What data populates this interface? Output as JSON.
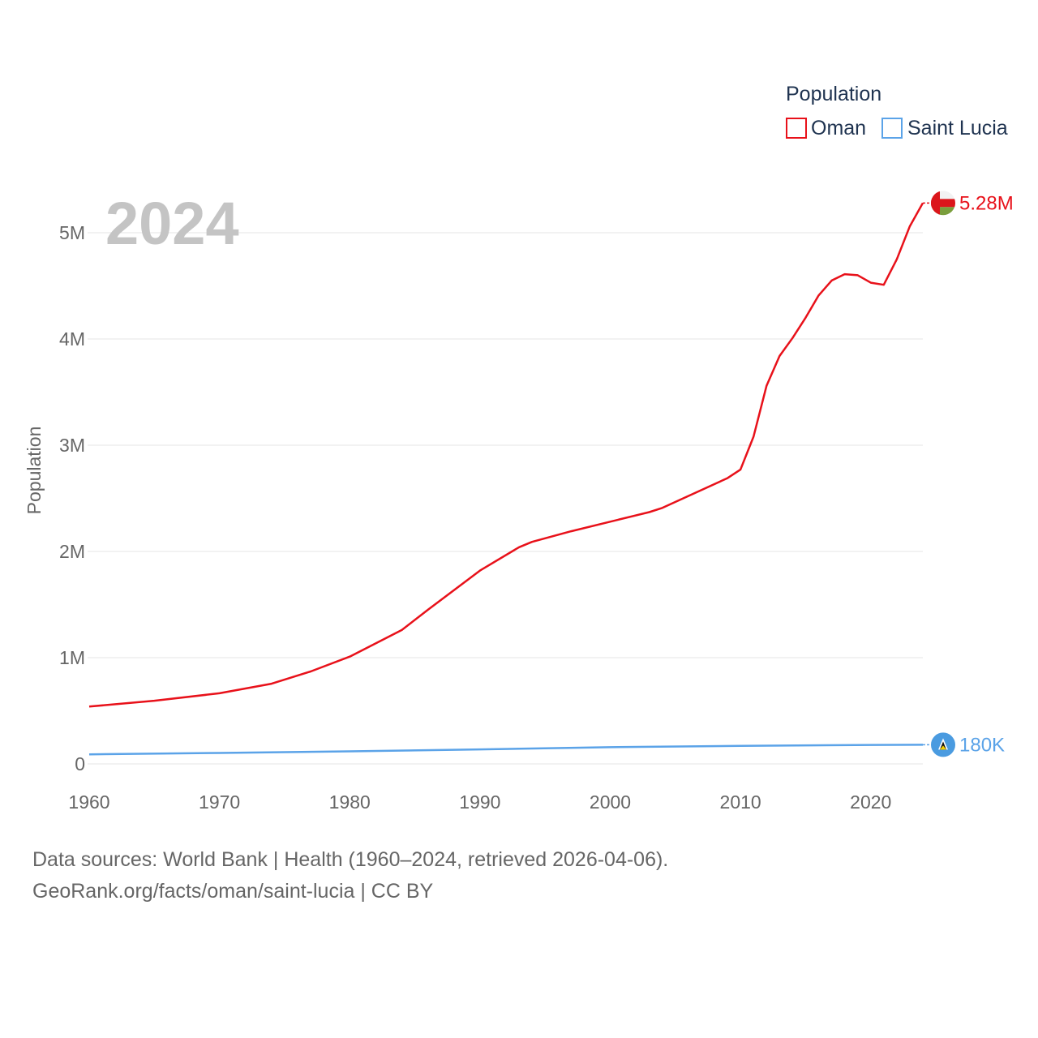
{
  "chart_data": {
    "type": "line",
    "current_year": "2024",
    "ylabel": "Population",
    "legend_title": "Population",
    "xlim": [
      1960,
      2024
    ],
    "ylim": [
      0,
      5500000
    ],
    "x_ticks": [
      1960,
      1970,
      1980,
      1990,
      2000,
      2010,
      2020
    ],
    "x_tick_labels": [
      "1960",
      "1970",
      "1980",
      "1990",
      "2000",
      "2010",
      "2020"
    ],
    "y_ticks": [
      0,
      1000000,
      2000000,
      3000000,
      4000000,
      5000000
    ],
    "y_tick_labels": [
      "0",
      "1M",
      "2M",
      "3M",
      "4M",
      "5M"
    ],
    "series": [
      {
        "name": "Oman",
        "color": "#e8111a",
        "end_label": "5.28M",
        "flag": "oman-flag",
        "points": [
          [
            1960,
            540000
          ],
          [
            1965,
            595000
          ],
          [
            1970,
            665000
          ],
          [
            1974,
            755000
          ],
          [
            1977,
            870000
          ],
          [
            1980,
            1010000
          ],
          [
            1984,
            1260000
          ],
          [
            1986,
            1450000
          ],
          [
            1990,
            1820000
          ],
          [
            1993,
            2040000
          ],
          [
            1994,
            2090000
          ],
          [
            1997,
            2190000
          ],
          [
            2000,
            2280000
          ],
          [
            2003,
            2370000
          ],
          [
            2004,
            2410000
          ],
          [
            2009,
            2690000
          ],
          [
            2010,
            2770000
          ],
          [
            2011,
            3080000
          ],
          [
            2012,
            3560000
          ],
          [
            2013,
            3840000
          ],
          [
            2014,
            4010000
          ],
          [
            2015,
            4200000
          ],
          [
            2016,
            4410000
          ],
          [
            2017,
            4550000
          ],
          [
            2018,
            4610000
          ],
          [
            2019,
            4600000
          ],
          [
            2020,
            4530000
          ],
          [
            2021,
            4510000
          ],
          [
            2022,
            4750000
          ],
          [
            2023,
            5060000
          ],
          [
            2024,
            5280000
          ]
        ]
      },
      {
        "name": "Saint Lucia",
        "color": "#5ba3e8",
        "end_label": "180K",
        "flag": "saint-lucia-flag",
        "points": [
          [
            1960,
            90000
          ],
          [
            1970,
            103000
          ],
          [
            1980,
            118000
          ],
          [
            1990,
            137000
          ],
          [
            2000,
            157000
          ],
          [
            2010,
            170000
          ],
          [
            2020,
            179000
          ],
          [
            2024,
            180000
          ]
        ]
      }
    ]
  },
  "source_line1": "Data sources: World Bank | Health (1960–2024, retrieved 2026-04-06).",
  "source_line2": "GeoRank.org/facts/oman/saint-lucia | CC BY"
}
